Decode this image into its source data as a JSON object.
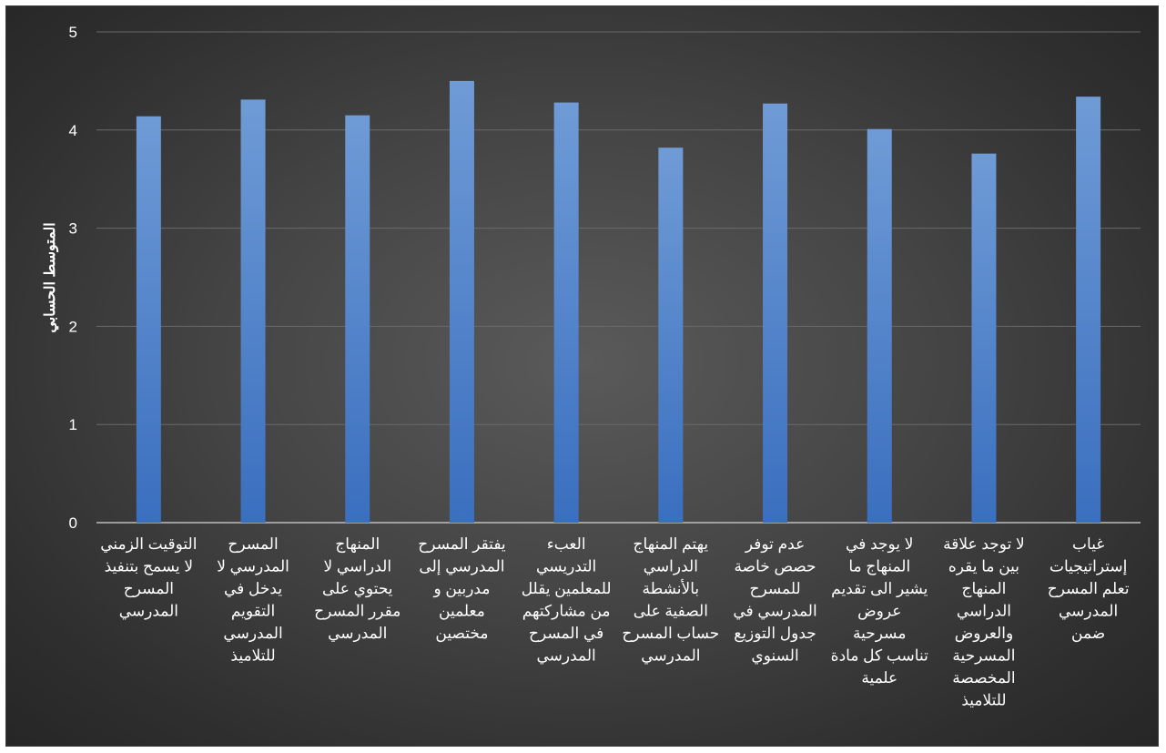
{
  "chart_data": {
    "type": "bar",
    "title": "",
    "xlabel": "",
    "ylabel": "المتوسط الحسابي",
    "ylim": [
      0,
      5
    ],
    "yticks": [
      "0",
      "1",
      "2",
      "3",
      "4",
      "5"
    ],
    "grid": true,
    "categories": [
      [
        "التوقيت الزمني",
        "لا يسمح بتنفيذ",
        "المسرح",
        "المدرسي"
      ],
      [
        "المسرح",
        "المدرسي لا",
        "يدخل في",
        "التقويم",
        "المدرسي",
        "للتلاميذ"
      ],
      [
        "المنهاج",
        "الدراسي لا",
        "يحتوي على",
        "مقرر المسرح",
        "المدرسي"
      ],
      [
        "يفتقر المسرح",
        "المدرسي إلى",
        "مدربين و",
        "معلمين",
        "مختصين"
      ],
      [
        "العبء",
        "التدريسي",
        "للمعلمين يقلل",
        "من مشاركتهم",
        "في المسرح",
        "المدرسي"
      ],
      [
        "يهتم المنهاج",
        "الدراسي",
        "بالأنشطة",
        "الصفية على",
        "حساب المسرح",
        "المدرسي"
      ],
      [
        "عدم توفر",
        "حصص خاصة",
        "للمسرح",
        "المدرسي في",
        "جدول التوزيع",
        "السنوي"
      ],
      [
        "لا يوجد في",
        "المنهاج ما",
        "يشير الى تقديم",
        "عروض",
        "مسرحية",
        "تناسب كل مادة",
        "علمية"
      ],
      [
        "لا توجد علاقة",
        "بين ما يقره",
        "المنهاج",
        "الدراسي",
        "والعروض",
        "المسرحية",
        "المخصصة",
        "للتلاميذ"
      ],
      [
        "غياب",
        "إستراتيجيات",
        "تعلم المسرح",
        "المدرسي",
        "ضمن"
      ]
    ],
    "values": [
      4.14,
      4.31,
      4.15,
      4.5,
      4.28,
      3.82,
      4.27,
      4.01,
      3.76,
      4.34
    ],
    "colors": {
      "bar_top": "#6f9bd6",
      "bar_bottom": "#3a6fbf",
      "grid": "#6a6a6a",
      "axis": "#bdbdbd"
    }
  }
}
